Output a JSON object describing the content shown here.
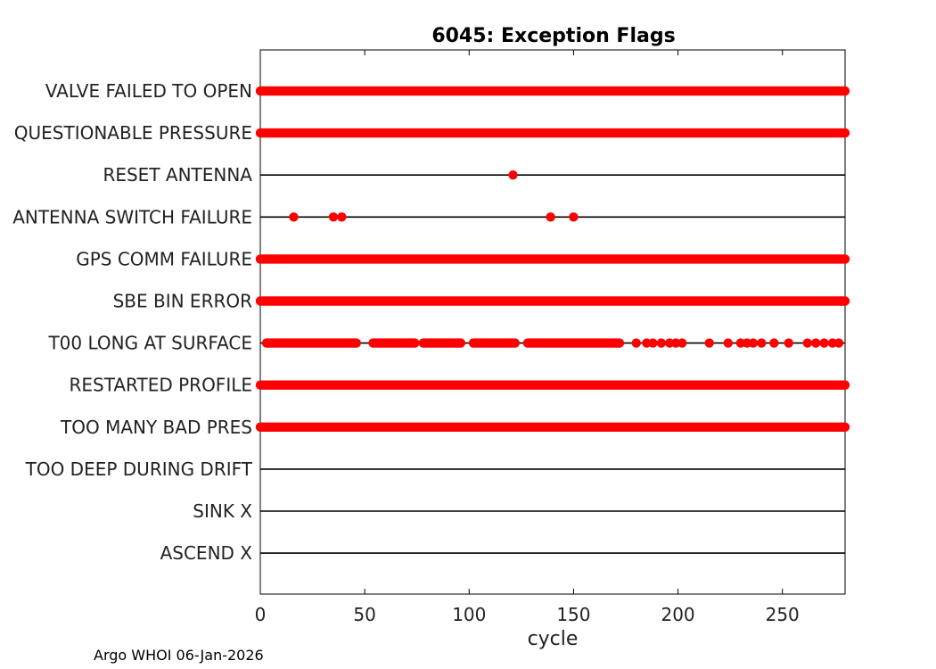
{
  "chart_data": {
    "type": "scatter",
    "title": "6045: Exception Flags",
    "xlabel": "cycle",
    "ylabel": "",
    "xlim": [
      0,
      280
    ],
    "xticks": [
      0,
      50,
      100,
      150,
      200,
      250
    ],
    "grid": false,
    "marker_color": "#ff0000",
    "line_color": "#000000",
    "categories": [
      "VALVE FAILED TO OPEN",
      "QUESTIONABLE PRESSURE",
      "RESET ANTENNA",
      "ANTENNA SWITCH FAILURE",
      "GPS COMM FAILURE",
      "SBE BIN ERROR",
      "T00 LONG AT SURFACE",
      "RESTARTED PROFILE",
      "TOO MANY BAD PRES",
      "TOO DEEP DURING DRIFT",
      "SINK X",
      "ASCEND X"
    ],
    "series": [
      {
        "name": "VALVE FAILED TO OPEN",
        "ranges": [
          [
            0,
            280
          ]
        ],
        "points": []
      },
      {
        "name": "QUESTIONABLE PRESSURE",
        "ranges": [
          [
            0,
            280
          ]
        ],
        "points": []
      },
      {
        "name": "RESET ANTENNA",
        "ranges": [],
        "points": [
          121
        ]
      },
      {
        "name": "ANTENNA SWITCH FAILURE",
        "ranges": [],
        "points": [
          16,
          35,
          39,
          139,
          150
        ]
      },
      {
        "name": "GPS COMM FAILURE",
        "ranges": [
          [
            0,
            280
          ]
        ],
        "points": []
      },
      {
        "name": "SBE BIN ERROR",
        "ranges": [
          [
            0,
            280
          ]
        ],
        "points": []
      },
      {
        "name": "T00 LONG AT SURFACE",
        "ranges": [
          [
            3,
            46
          ],
          [
            54,
            74
          ],
          [
            78,
            96
          ],
          [
            102,
            122
          ],
          [
            128,
            172
          ]
        ],
        "points": [
          180,
          185,
          188,
          192,
          196,
          199,
          202,
          215,
          224,
          230,
          233,
          236,
          240,
          246,
          253,
          262,
          266,
          270,
          274,
          277
        ]
      },
      {
        "name": "RESTARTED PROFILE",
        "ranges": [
          [
            0,
            280
          ]
        ],
        "points": []
      },
      {
        "name": "TOO MANY BAD PRES",
        "ranges": [
          [
            0,
            280
          ]
        ],
        "points": []
      },
      {
        "name": "TOO DEEP DURING DRIFT",
        "ranges": [],
        "points": []
      },
      {
        "name": "SINK X",
        "ranges": [],
        "points": []
      },
      {
        "name": "ASCEND X",
        "ranges": [],
        "points": []
      }
    ]
  },
  "footer": "Argo WHOI 06-Jan-2026"
}
